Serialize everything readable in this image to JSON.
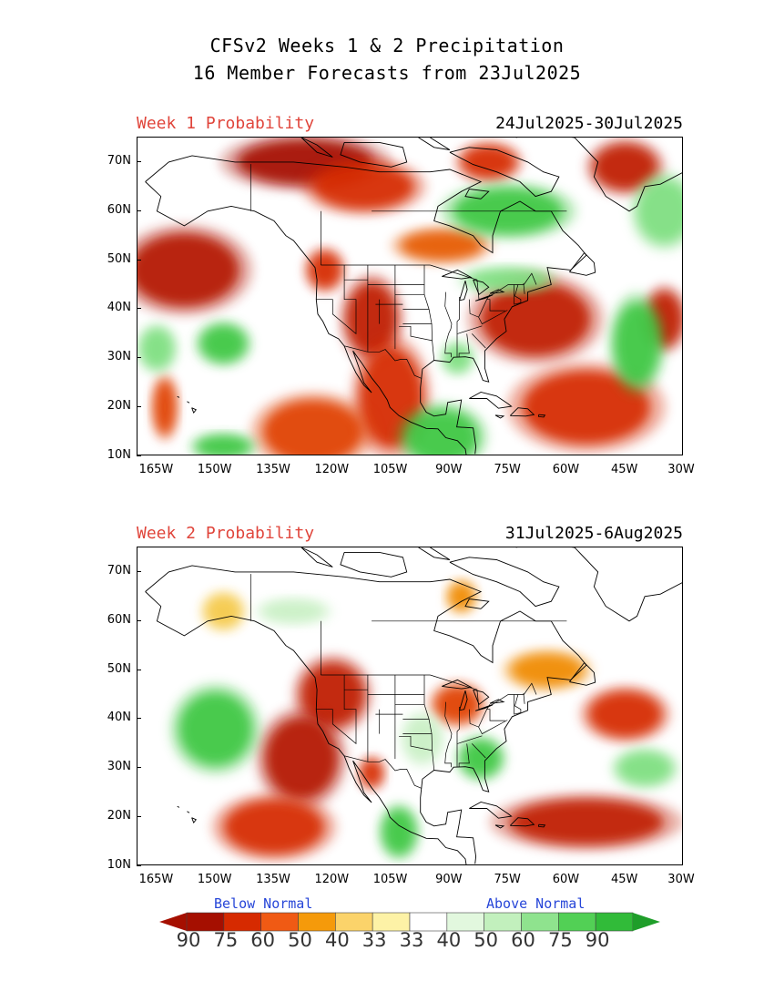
{
  "title_line1": "CFSv2 Weeks 1 & 2 Precipitation",
  "title_line2": "16 Member Forecasts from 23Jul2025",
  "panels": [
    {
      "label": "Week 1 Probability",
      "dates": "24Jul2025-30Jul2025",
      "blobs": [
        {
          "lon": -127,
          "lat": 70,
          "rx": 75,
          "ry": 25,
          "color": "#a50f00"
        },
        {
          "lon": -112,
          "lat": 65,
          "rx": 55,
          "ry": 25,
          "color": "#d62a00"
        },
        {
          "lon": -80,
          "lat": 70,
          "rx": 30,
          "ry": 18,
          "color": "#d62a00"
        },
        {
          "lon": -45,
          "lat": 69,
          "rx": 35,
          "ry": 25,
          "color": "#c01a00"
        },
        {
          "lon": -92,
          "lat": 53,
          "rx": 45,
          "ry": 16,
          "color": "#e65a00"
        },
        {
          "lon": -158,
          "lat": 48,
          "rx": 60,
          "ry": 40,
          "color": "#b41800"
        },
        {
          "lon": -122,
          "lat": 48,
          "rx": 18,
          "ry": 20,
          "color": "#d62a00"
        },
        {
          "lon": -110,
          "lat": 38,
          "rx": 28,
          "ry": 40,
          "color": "#c01a00"
        },
        {
          "lon": -105,
          "lat": 22,
          "rx": 35,
          "ry": 55,
          "color": "#d62a00"
        },
        {
          "lon": -125,
          "lat": 15,
          "rx": 55,
          "ry": 35,
          "color": "#e04000"
        },
        {
          "lon": -68,
          "lat": 38,
          "rx": 60,
          "ry": 40,
          "color": "#c01a00"
        },
        {
          "lon": -55,
          "lat": 20,
          "rx": 70,
          "ry": 40,
          "color": "#d62a00"
        },
        {
          "lon": -35,
          "lat": 38,
          "rx": 20,
          "ry": 30,
          "color": "#c01a00"
        },
        {
          "lon": -163,
          "lat": 20,
          "rx": 12,
          "ry": 30,
          "color": "#e04000"
        },
        {
          "lon": -75,
          "lat": 60,
          "rx": 60,
          "ry": 25,
          "color": "#3ec742"
        },
        {
          "lon": -75,
          "lat": 46,
          "rx": 45,
          "ry": 12,
          "color": "#7edf80"
        },
        {
          "lon": -42,
          "lat": 33,
          "rx": 25,
          "ry": 45,
          "color": "#3ec742"
        },
        {
          "lon": -148,
          "lat": 33,
          "rx": 25,
          "ry": 20,
          "color": "#3ec742"
        },
        {
          "lon": -165,
          "lat": 32,
          "rx": 18,
          "ry": 22,
          "color": "#7edf80"
        },
        {
          "lon": -92,
          "lat": 14,
          "rx": 40,
          "ry": 30,
          "color": "#3ec742"
        },
        {
          "lon": -88,
          "lat": 30,
          "rx": 15,
          "ry": 15,
          "color": "#7edf80"
        },
        {
          "lon": -35,
          "lat": 60,
          "rx": 30,
          "ry": 35,
          "color": "#7edf80"
        },
        {
          "lon": -148,
          "lat": 12,
          "rx": 30,
          "ry": 12,
          "color": "#3ec742"
        }
      ]
    },
    {
      "label": "Week 2 Probability",
      "dates": "31Jul2025-6Aug2025",
      "blobs": [
        {
          "lon": -120,
          "lat": 45,
          "rx": 35,
          "ry": 35,
          "color": "#c01a00"
        },
        {
          "lon": -128,
          "lat": 32,
          "rx": 40,
          "ry": 45,
          "color": "#b41800"
        },
        {
          "lon": -135,
          "lat": 18,
          "rx": 55,
          "ry": 30,
          "color": "#d62a00"
        },
        {
          "lon": -110,
          "lat": 29,
          "rx": 12,
          "ry": 15,
          "color": "#d62a00"
        },
        {
          "lon": -88,
          "lat": 43,
          "rx": 25,
          "ry": 20,
          "color": "#e04000"
        },
        {
          "lon": -65,
          "lat": 50,
          "rx": 40,
          "ry": 18,
          "color": "#f08a00"
        },
        {
          "lon": -55,
          "lat": 19,
          "rx": 85,
          "ry": 25,
          "color": "#c01a00"
        },
        {
          "lon": -45,
          "lat": 41,
          "rx": 40,
          "ry": 25,
          "color": "#d62a00"
        },
        {
          "lon": -148,
          "lat": 62,
          "rx": 20,
          "ry": 18,
          "color": "#f5c94a"
        },
        {
          "lon": -87,
          "lat": 65,
          "rx": 14,
          "ry": 15,
          "color": "#f08a00"
        },
        {
          "lon": -150,
          "lat": 38,
          "rx": 40,
          "ry": 40,
          "color": "#3ec742"
        },
        {
          "lon": -82,
          "lat": 32,
          "rx": 22,
          "ry": 20,
          "color": "#3ec742"
        },
        {
          "lon": -103,
          "lat": 17,
          "rx": 18,
          "ry": 25,
          "color": "#3ec742"
        },
        {
          "lon": -40,
          "lat": 30,
          "rx": 30,
          "ry": 18,
          "color": "#7edf80"
        },
        {
          "lon": -97,
          "lat": 36,
          "rx": 20,
          "ry": 25,
          "color": "#c9f0c5"
        },
        {
          "lon": -130,
          "lat": 62,
          "rx": 35,
          "ry": 12,
          "color": "#c9f0c5"
        }
      ]
    }
  ],
  "y_ticks": [
    "70N",
    "60N",
    "50N",
    "40N",
    "30N",
    "20N",
    "10N"
  ],
  "x_ticks": [
    "165W",
    "150W",
    "135W",
    "120W",
    "105W",
    "90W",
    "75W",
    "60W",
    "45W",
    "30W"
  ],
  "legend": {
    "below_label": "Below Normal",
    "above_label": "Above Normal",
    "numbers": [
      "90",
      "75",
      "60",
      "50",
      "40",
      "33",
      "33",
      "40",
      "50",
      "60",
      "75",
      "90"
    ],
    "colors": [
      "#a50f00",
      "#d62a00",
      "#f05a14",
      "#f59a0a",
      "#fbd36a",
      "#fdf2a6",
      "#ffffff",
      "#e2f8de",
      "#c2f0bd",
      "#8fe38e",
      "#52d055",
      "#31bb39"
    ],
    "left_arrow_color": "#a50f00",
    "right_arrow_color": "#1f9e2a"
  }
}
